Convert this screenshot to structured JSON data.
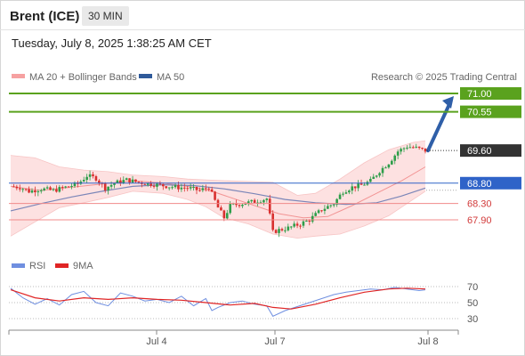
{
  "header": {
    "instrument": "Brent (ICE)",
    "timeframe": "30 MIN",
    "timestamp": "Tuesday, July 8, 2025 1:38:25 AM CET"
  },
  "legend": {
    "ma20": "MA 20 + Bollinger Bands",
    "ma50": "MA 50",
    "credit": "Research © 2025 Trading Central"
  },
  "rsi_legend": {
    "rsi": "RSI",
    "ma": "9MA"
  },
  "colors": {
    "resistance": "#5aa21e",
    "support": "#2f63c8",
    "minor_support": "#f08a8a",
    "bollinger_fill": "#fde1e1",
    "ma20": "#f29494",
    "ma50": "#7b86b8",
    "candle_up": "#2e9e4a",
    "candle_down": "#d9302f",
    "current": "#333333",
    "arrow": "#2f5fa8",
    "rsi": "#6f8fe0",
    "rsi_ma": "#e02525"
  },
  "chart_data": {
    "type": "candlestick",
    "title": "Brent (ICE)",
    "timeframe": "30 MIN",
    "x_ticks": [
      "Jul 4",
      "Jul 7",
      "Jul 8"
    ],
    "y_range": [
      67.4,
      71.3
    ],
    "levels": [
      {
        "label": "71.00",
        "value": 71.0,
        "kind": "resistance",
        "boxed": true
      },
      {
        "label": "70.55",
        "value": 70.55,
        "kind": "resistance",
        "boxed": true
      },
      {
        "label": "69.60",
        "value": 69.6,
        "kind": "current",
        "boxed": true
      },
      {
        "label": "68.80",
        "value": 68.8,
        "kind": "support",
        "boxed": true
      },
      {
        "label": "68.30",
        "value": 68.3,
        "kind": "minor_support",
        "boxed": false
      },
      {
        "label": "67.90",
        "value": 67.9,
        "kind": "minor_support",
        "boxed": false
      }
    ],
    "price_path": [
      {
        "t": 0,
        "p": 68.72
      },
      {
        "t": 3,
        "p": 68.7
      },
      {
        "t": 6,
        "p": 68.6
      },
      {
        "t": 10,
        "p": 68.66
      },
      {
        "t": 14,
        "p": 68.62
      },
      {
        "t": 18,
        "p": 68.7
      },
      {
        "t": 22,
        "p": 68.78
      },
      {
        "t": 25,
        "p": 68.98
      },
      {
        "t": 28,
        "p": 68.92
      },
      {
        "t": 31,
        "p": 68.68
      },
      {
        "t": 34,
        "p": 68.8
      },
      {
        "t": 38,
        "p": 68.88
      },
      {
        "t": 42,
        "p": 68.82
      },
      {
        "t": 46,
        "p": 68.78
      },
      {
        "t": 50,
        "p": 68.74
      },
      {
        "t": 54,
        "p": 68.7
      },
      {
        "t": 58,
        "p": 68.68
      },
      {
        "t": 62,
        "p": 68.62
      },
      {
        "t": 65,
        "p": 68.7
      },
      {
        "t": 68,
        "p": 68.2
      },
      {
        "t": 70,
        "p": 67.95
      },
      {
        "t": 72,
        "p": 68.25
      },
      {
        "t": 76,
        "p": 68.3
      },
      {
        "t": 80,
        "p": 68.35
      },
      {
        "t": 84,
        "p": 68.42
      },
      {
        "t": 86,
        "p": 67.6
      },
      {
        "t": 88,
        "p": 67.65
      },
      {
        "t": 91,
        "p": 67.7
      },
      {
        "t": 95,
        "p": 67.8
      },
      {
        "t": 98,
        "p": 67.9
      },
      {
        "t": 102,
        "p": 68.15
      },
      {
        "t": 106,
        "p": 68.3
      },
      {
        "t": 109,
        "p": 68.6
      },
      {
        "t": 112,
        "p": 68.7
      },
      {
        "t": 115,
        "p": 68.75
      },
      {
        "t": 118,
        "p": 68.85
      },
      {
        "t": 121,
        "p": 69.1
      },
      {
        "t": 124,
        "p": 69.3
      },
      {
        "t": 127,
        "p": 69.58
      },
      {
        "t": 130,
        "p": 69.7
      },
      {
        "t": 133,
        "p": 69.66
      },
      {
        "t": 136,
        "p": 69.6
      }
    ],
    "ma20": [
      {
        "t": 0,
        "p": 68.72
      },
      {
        "t": 10,
        "p": 68.62
      },
      {
        "t": 20,
        "p": 68.7
      },
      {
        "t": 30,
        "p": 68.78
      },
      {
        "t": 40,
        "p": 68.86
      },
      {
        "t": 50,
        "p": 68.8
      },
      {
        "t": 60,
        "p": 68.7
      },
      {
        "t": 66,
        "p": 68.6
      },
      {
        "t": 72,
        "p": 68.45
      },
      {
        "t": 80,
        "p": 68.25
      },
      {
        "t": 88,
        "p": 68.05
      },
      {
        "t": 96,
        "p": 67.95
      },
      {
        "t": 104,
        "p": 67.98
      },
      {
        "t": 112,
        "p": 68.25
      },
      {
        "t": 120,
        "p": 68.55
      },
      {
        "t": 128,
        "p": 68.85
      },
      {
        "t": 136,
        "p": 69.2
      }
    ],
    "ma50": [
      {
        "t": 0,
        "p": 68.12
      },
      {
        "t": 10,
        "p": 68.3
      },
      {
        "t": 20,
        "p": 68.46
      },
      {
        "t": 30,
        "p": 68.6
      },
      {
        "t": 40,
        "p": 68.72
      },
      {
        "t": 50,
        "p": 68.76
      },
      {
        "t": 60,
        "p": 68.74
      },
      {
        "t": 70,
        "p": 68.66
      },
      {
        "t": 80,
        "p": 68.54
      },
      {
        "t": 90,
        "p": 68.4
      },
      {
        "t": 100,
        "p": 68.32
      },
      {
        "t": 110,
        "p": 68.28
      },
      {
        "t": 120,
        "p": 68.32
      },
      {
        "t": 128,
        "p": 68.48
      },
      {
        "t": 136,
        "p": 68.68
      }
    ],
    "bollinger": {
      "upper": [
        {
          "t": 0,
          "p": 69.48
        },
        {
          "t": 8,
          "p": 69.42
        },
        {
          "t": 16,
          "p": 69.2
        },
        {
          "t": 24,
          "p": 69.12
        },
        {
          "t": 32,
          "p": 69.08
        },
        {
          "t": 40,
          "p": 69.0
        },
        {
          "t": 50,
          "p": 68.96
        },
        {
          "t": 58,
          "p": 68.9
        },
        {
          "t": 64,
          "p": 68.88
        },
        {
          "t": 70,
          "p": 68.86
        },
        {
          "t": 78,
          "p": 68.84
        },
        {
          "t": 86,
          "p": 68.82
        },
        {
          "t": 94,
          "p": 68.5
        },
        {
          "t": 100,
          "p": 68.55
        },
        {
          "t": 108,
          "p": 68.9
        },
        {
          "t": 116,
          "p": 69.3
        },
        {
          "t": 124,
          "p": 69.62
        },
        {
          "t": 132,
          "p": 69.8
        },
        {
          "t": 136,
          "p": 69.84
        }
      ],
      "lower": [
        {
          "t": 0,
          "p": 67.5
        },
        {
          "t": 8,
          "p": 67.85
        },
        {
          "t": 16,
          "p": 68.2
        },
        {
          "t": 24,
          "p": 68.32
        },
        {
          "t": 32,
          "p": 68.45
        },
        {
          "t": 40,
          "p": 68.6
        },
        {
          "t": 50,
          "p": 68.55
        },
        {
          "t": 58,
          "p": 68.4
        },
        {
          "t": 64,
          "p": 68.22
        },
        {
          "t": 70,
          "p": 67.95
        },
        {
          "t": 78,
          "p": 67.8
        },
        {
          "t": 86,
          "p": 67.55
        },
        {
          "t": 94,
          "p": 67.45
        },
        {
          "t": 100,
          "p": 67.5
        },
        {
          "t": 108,
          "p": 67.55
        },
        {
          "t": 116,
          "p": 67.75
        },
        {
          "t": 124,
          "p": 68.0
        },
        {
          "t": 132,
          "p": 68.4
        },
        {
          "t": 136,
          "p": 68.6
        }
      ]
    },
    "projection": {
      "from": 69.6,
      "to": 71.0
    },
    "rsi": {
      "ticks": [
        70,
        50,
        30
      ],
      "range": [
        20,
        80
      ],
      "rsi_path": [
        {
          "t": 0,
          "p": 68
        },
        {
          "t": 4,
          "p": 56
        },
        {
          "t": 8,
          "p": 48
        },
        {
          "t": 12,
          "p": 55
        },
        {
          "t": 16,
          "p": 47
        },
        {
          "t": 20,
          "p": 60
        },
        {
          "t": 24,
          "p": 64
        },
        {
          "t": 28,
          "p": 50
        },
        {
          "t": 32,
          "p": 46
        },
        {
          "t": 36,
          "p": 62
        },
        {
          "t": 40,
          "p": 58
        },
        {
          "t": 44,
          "p": 52
        },
        {
          "t": 48,
          "p": 54
        },
        {
          "t": 52,
          "p": 50
        },
        {
          "t": 56,
          "p": 58
        },
        {
          "t": 60,
          "p": 46
        },
        {
          "t": 64,
          "p": 55
        },
        {
          "t": 66,
          "p": 40
        },
        {
          "t": 68,
          "p": 44
        },
        {
          "t": 72,
          "p": 50
        },
        {
          "t": 76,
          "p": 52
        },
        {
          "t": 80,
          "p": 48
        },
        {
          "t": 84,
          "p": 46
        },
        {
          "t": 86,
          "p": 33
        },
        {
          "t": 90,
          "p": 40
        },
        {
          "t": 94,
          "p": 45
        },
        {
          "t": 98,
          "p": 50
        },
        {
          "t": 102,
          "p": 55
        },
        {
          "t": 106,
          "p": 60
        },
        {
          "t": 110,
          "p": 63
        },
        {
          "t": 114,
          "p": 65
        },
        {
          "t": 118,
          "p": 67
        },
        {
          "t": 122,
          "p": 66
        },
        {
          "t": 126,
          "p": 69
        },
        {
          "t": 130,
          "p": 67
        },
        {
          "t": 134,
          "p": 65
        },
        {
          "t": 136,
          "p": 66
        }
      ],
      "ma_path": [
        {
          "t": 0,
          "p": 66
        },
        {
          "t": 8,
          "p": 56
        },
        {
          "t": 16,
          "p": 52
        },
        {
          "t": 24,
          "p": 56
        },
        {
          "t": 32,
          "p": 54
        },
        {
          "t": 40,
          "p": 56
        },
        {
          "t": 48,
          "p": 54
        },
        {
          "t": 56,
          "p": 53
        },
        {
          "t": 64,
          "p": 50
        },
        {
          "t": 72,
          "p": 47
        },
        {
          "t": 80,
          "p": 49
        },
        {
          "t": 86,
          "p": 44
        },
        {
          "t": 92,
          "p": 42
        },
        {
          "t": 100,
          "p": 48
        },
        {
          "t": 108,
          "p": 56
        },
        {
          "t": 116,
          "p": 63
        },
        {
          "t": 124,
          "p": 67
        },
        {
          "t": 130,
          "p": 68
        },
        {
          "t": 136,
          "p": 67
        }
      ]
    }
  }
}
